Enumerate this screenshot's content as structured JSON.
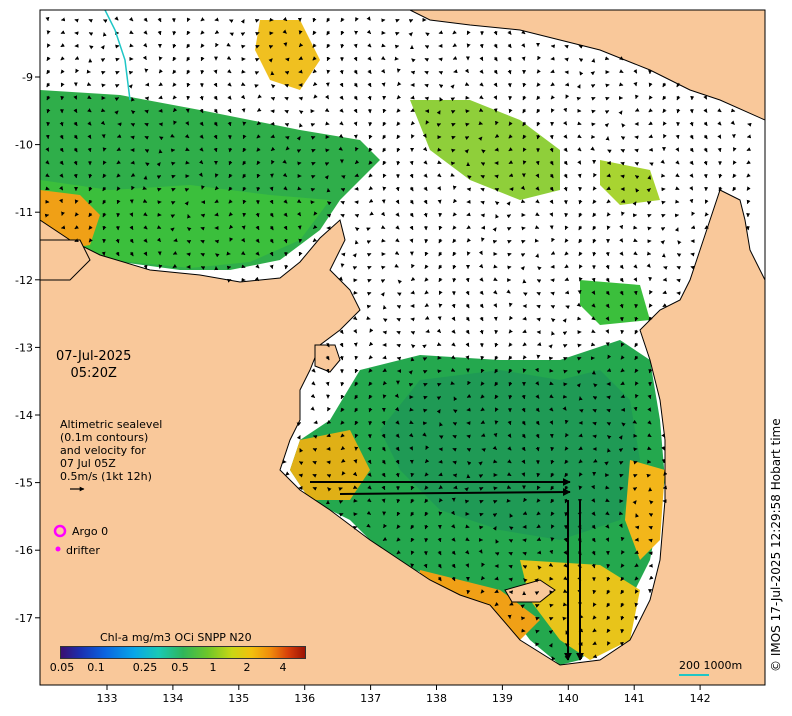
{
  "map": {
    "date_label": "07-Jul-2025",
    "time_label": "05:20Z",
    "colors": {
      "land": "#f9c89a",
      "ocean_nodata": "#ffffff",
      "arrow": "#000000",
      "argo_marker": "#ff00ff",
      "drifter_marker": "#ff00ff",
      "scale_bar": "#1fc6c6"
    },
    "altimetry_text": [
      "Altimetric sealevel",
      "(0.1m contours)",
      "and velocity for",
      "07 Jul 05Z",
      "0.5m/s (1kt 12h)"
    ],
    "legend": {
      "argo_label": "Argo 0",
      "drifter_label": "drifter"
    },
    "colorbar": {
      "title": "Chl-a mg/m3 OCi SNPP N20",
      "ticks": [
        "0.05",
        "0.1",
        "0.25",
        "0.5",
        "1",
        "2",
        "4"
      ]
    },
    "scale": {
      "label": "200  1000m"
    },
    "credit": "© IMOS 17-Jul-2025 12:29:58 Hobart time",
    "lon_ticks": [
      "133",
      "134",
      "135",
      "136",
      "137",
      "138",
      "139",
      "140",
      "141",
      "142"
    ],
    "lat_ticks": [
      "-9",
      "-10",
      "-11",
      "-12",
      "-13",
      "-14",
      "-15",
      "-16",
      "-17"
    ]
  }
}
